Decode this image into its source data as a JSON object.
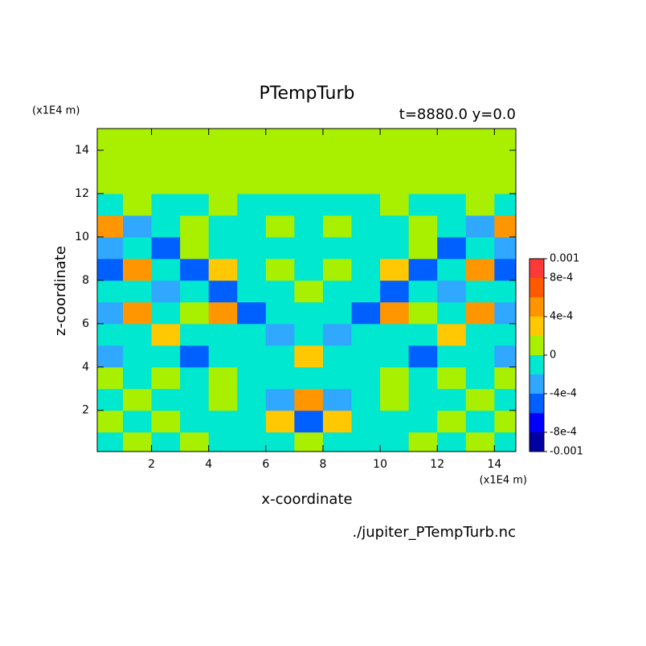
{
  "chart_data": {
    "type": "contour",
    "title": "PTempTurb",
    "subtitle": "t=8880.0 y=0.0",
    "x_unit_label": "(x1E4 m)",
    "y_unit_label": "(x1E4 m)",
    "x_label": "x-coordinate",
    "y_label": "z-coordinate",
    "source": "./jupiter_PTempTurb.nc",
    "xlim": [
      0.1,
      14.75
    ],
    "ylim": [
      0.1,
      15
    ],
    "xticks": [
      2,
      4,
      6,
      8,
      10,
      12,
      14
    ],
    "yticks": [
      2,
      4,
      6,
      8,
      10,
      12,
      14
    ],
    "x": [
      0.5,
      1.5,
      2.5,
      3.5,
      4.5,
      5.5,
      6.5,
      7.5,
      8.5,
      9.5,
      10.5,
      11.5,
      12.5,
      13.5,
      14.5
    ],
    "y": [
      0.5,
      1.5,
      2.5,
      3.5,
      4.5,
      5.5,
      6.5,
      7.5,
      8.5,
      9.5,
      10.5,
      11.5,
      12.5,
      13.5,
      14.5
    ],
    "z": [
      [
        -0.0001,
        0.0001,
        -0.0001,
        0.0001,
        -0.0001,
        -0.0001,
        -0.0001,
        0.0001,
        -0.0001,
        -0.0001,
        -0.0001,
        0.0001,
        -0.0001,
        0.0001,
        -0.0001
      ],
      [
        0.0001,
        -0.0001,
        0.0001,
        -0.0001,
        -0.0001,
        -0.0001,
        0.0003,
        -0.0005,
        0.0003,
        -0.0001,
        -0.0001,
        -0.0001,
        0.0001,
        -0.0001,
        0.0001
      ],
      [
        -0.0001,
        0.0001,
        -0.0001,
        -0.0001,
        0.0001,
        -0.0001,
        -0.0003,
        0.0005,
        -0.0003,
        -0.0001,
        0.0001,
        -0.0001,
        -0.0001,
        0.0001,
        -0.0001
      ],
      [
        0.0001,
        -0.0001,
        0.0001,
        -0.0001,
        0.0001,
        -0.0001,
        -0.0001,
        -0.0001,
        -0.0001,
        -0.0001,
        0.0001,
        -0.0001,
        0.0001,
        -0.0001,
        0.0001
      ],
      [
        -0.0003,
        -0.0001,
        -0.0001,
        -0.0005,
        -0.0001,
        -0.0001,
        -0.0001,
        0.0003,
        -0.0001,
        -0.0001,
        -0.0001,
        -0.0005,
        -0.0001,
        -0.0001,
        -0.0003
      ],
      [
        -0.0001,
        -0.0001,
        0.0003,
        -0.0001,
        -0.0001,
        -0.0001,
        -0.0003,
        -0.0001,
        -0.0003,
        -0.0001,
        -0.0001,
        -0.0001,
        0.0003,
        -0.0001,
        -0.0001
      ],
      [
        -0.0003,
        0.0005,
        -0.0001,
        0.0001,
        0.0005,
        -0.0005,
        -0.0001,
        -0.0001,
        -0.0001,
        -0.0005,
        0.0005,
        0.0001,
        -0.0001,
        0.0005,
        -0.0003
      ],
      [
        -0.0001,
        -0.0001,
        -0.0003,
        -0.0001,
        -0.0005,
        -0.0001,
        -0.0001,
        0.0001,
        -0.0001,
        -0.0001,
        -0.0005,
        -0.0001,
        -0.0003,
        -0.0001,
        -0.0001
      ],
      [
        -0.0005,
        0.0005,
        -0.0001,
        -0.0005,
        0.0003,
        -0.0001,
        0.0001,
        -0.0001,
        0.0001,
        -0.0001,
        0.0003,
        -0.0005,
        -0.0001,
        0.0005,
        -0.0005
      ],
      [
        -0.0003,
        -0.0001,
        -0.0005,
        0.0001,
        -0.0001,
        -0.0001,
        -0.0001,
        -0.0001,
        -0.0001,
        -0.0001,
        -0.0001,
        0.0001,
        -0.0005,
        -0.0001,
        -0.0003
      ],
      [
        0.0005,
        -0.0003,
        -0.0001,
        0.0001,
        -0.0001,
        -0.0001,
        0.0001,
        -0.0001,
        0.0001,
        -0.0001,
        -0.0001,
        0.0001,
        -0.0001,
        -0.0003,
        0.0005
      ],
      [
        -0.0001,
        0.0001,
        -0.0001,
        -0.0001,
        0.0001,
        -0.0001,
        -0.0001,
        -0.0001,
        -0.0001,
        -0.0001,
        0.0001,
        -0.0001,
        -0.0001,
        0.0001,
        -0.0001
      ],
      [
        0.0001,
        0.0001,
        0.0001,
        0.0001,
        0.0001,
        0.0001,
        0.0001,
        0.0001,
        0.0001,
        0.0001,
        0.0001,
        0.0001,
        0.0001,
        0.0001,
        0.0001
      ],
      [
        0.0001,
        0.0001,
        0.0001,
        0.0001,
        0.0001,
        0.0001,
        0.0001,
        0.0001,
        0.0001,
        0.0001,
        0.0001,
        0.0001,
        0.0001,
        0.0001,
        0.0001
      ],
      [
        0.0001,
        0.0001,
        0.0001,
        0.0001,
        0.0001,
        0.0001,
        0.0001,
        0.0001,
        0.0001,
        0.0001,
        0.0001,
        0.0001,
        0.0001,
        0.0001,
        0.0001
      ]
    ],
    "levels": [
      -0.001,
      -0.0008,
      -0.0006,
      -0.0004,
      -0.0002,
      0,
      0.0002,
      0.0004,
      0.0006,
      0.0008,
      0.001
    ],
    "colors": [
      "#0000a0",
      "#0000ff",
      "#0060ff",
      "#30a8ff",
      "#00e8d0",
      "#a8f000",
      "#ffc800",
      "#ff9600",
      "#ff5a00",
      "#ff3838"
    ],
    "colorbar_ticks": [
      -0.001,
      {
        "value": -0.0008,
        "label": "-8e-4"
      },
      {
        "value": -0.0004,
        "label": "-4e-4"
      },
      0,
      {
        "value": 0.0004,
        "label": "4e-4"
      },
      {
        "value": 0.0008,
        "label": "8e-4"
      },
      0.001
    ]
  }
}
